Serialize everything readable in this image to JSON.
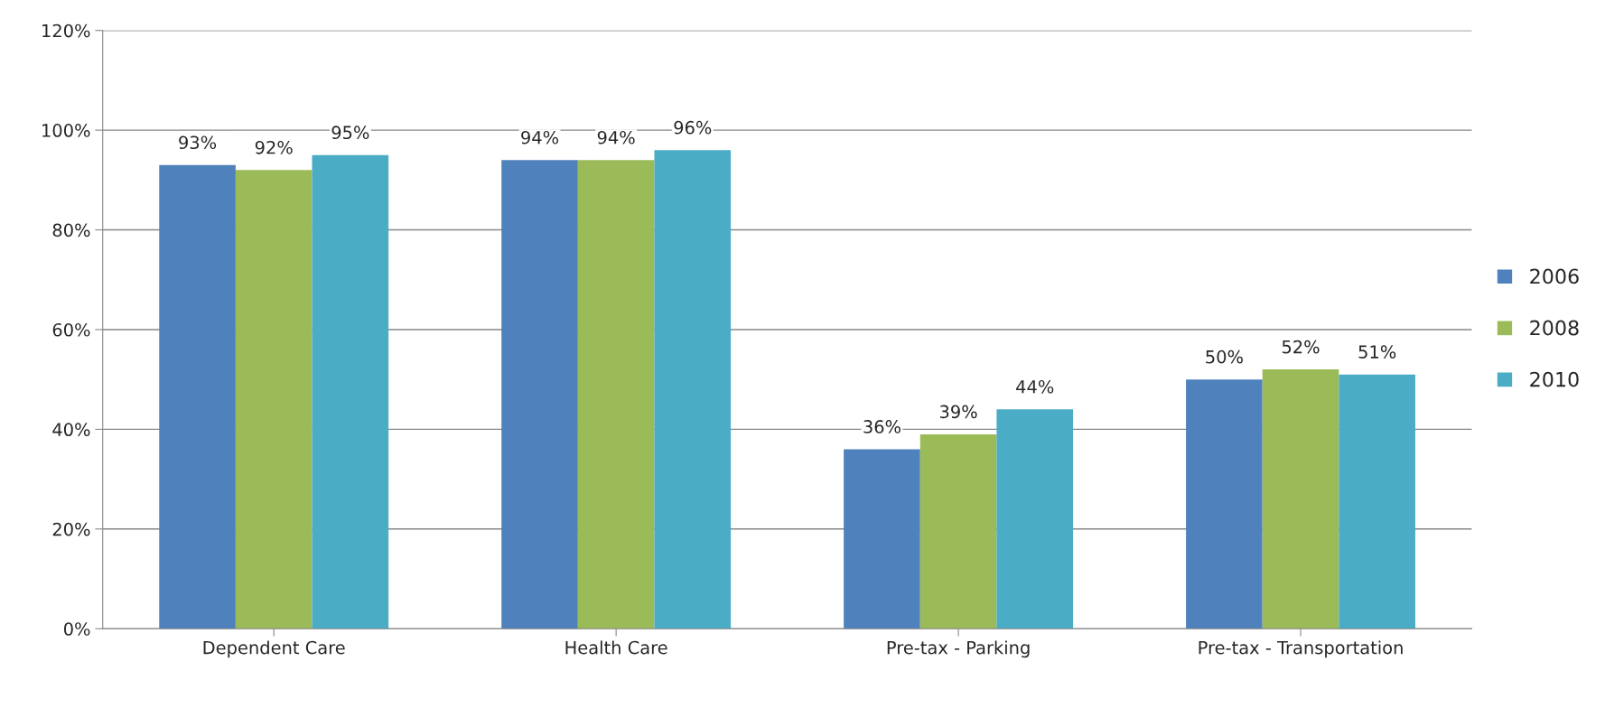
{
  "chart_data": {
    "type": "bar",
    "categories": [
      "Dependent Care",
      "Health Care",
      "Pre-tax - Parking",
      "Pre-tax - Transportation"
    ],
    "series": [
      {
        "name": "2006",
        "color": "#4f81bd",
        "values": [
          93,
          94,
          36,
          50
        ],
        "value_labels": [
          "93%",
          "94%",
          "36%",
          "50%"
        ]
      },
      {
        "name": "2008",
        "color": "#9bbb59",
        "values": [
          92,
          94,
          39,
          52
        ],
        "value_labels": [
          "92%",
          "94%",
          "39%",
          "52%"
        ]
      },
      {
        "name": "2010",
        "color": "#4bacc6",
        "values": [
          95,
          96,
          44,
          51
        ],
        "value_labels": [
          "95%",
          "96%",
          "44%",
          "51%"
        ]
      }
    ],
    "ylim": [
      0,
      120
    ],
    "yticks": [
      {
        "value": 0,
        "label": "0%"
      },
      {
        "value": 20,
        "label": "20%"
      },
      {
        "value": 40,
        "label": "40%"
      },
      {
        "value": 60,
        "label": "60%"
      },
      {
        "value": 80,
        "label": "80%"
      },
      {
        "value": 100,
        "label": "100%"
      },
      {
        "value": 120,
        "label": "120%"
      }
    ],
    "grid": "y",
    "legend": "right"
  }
}
